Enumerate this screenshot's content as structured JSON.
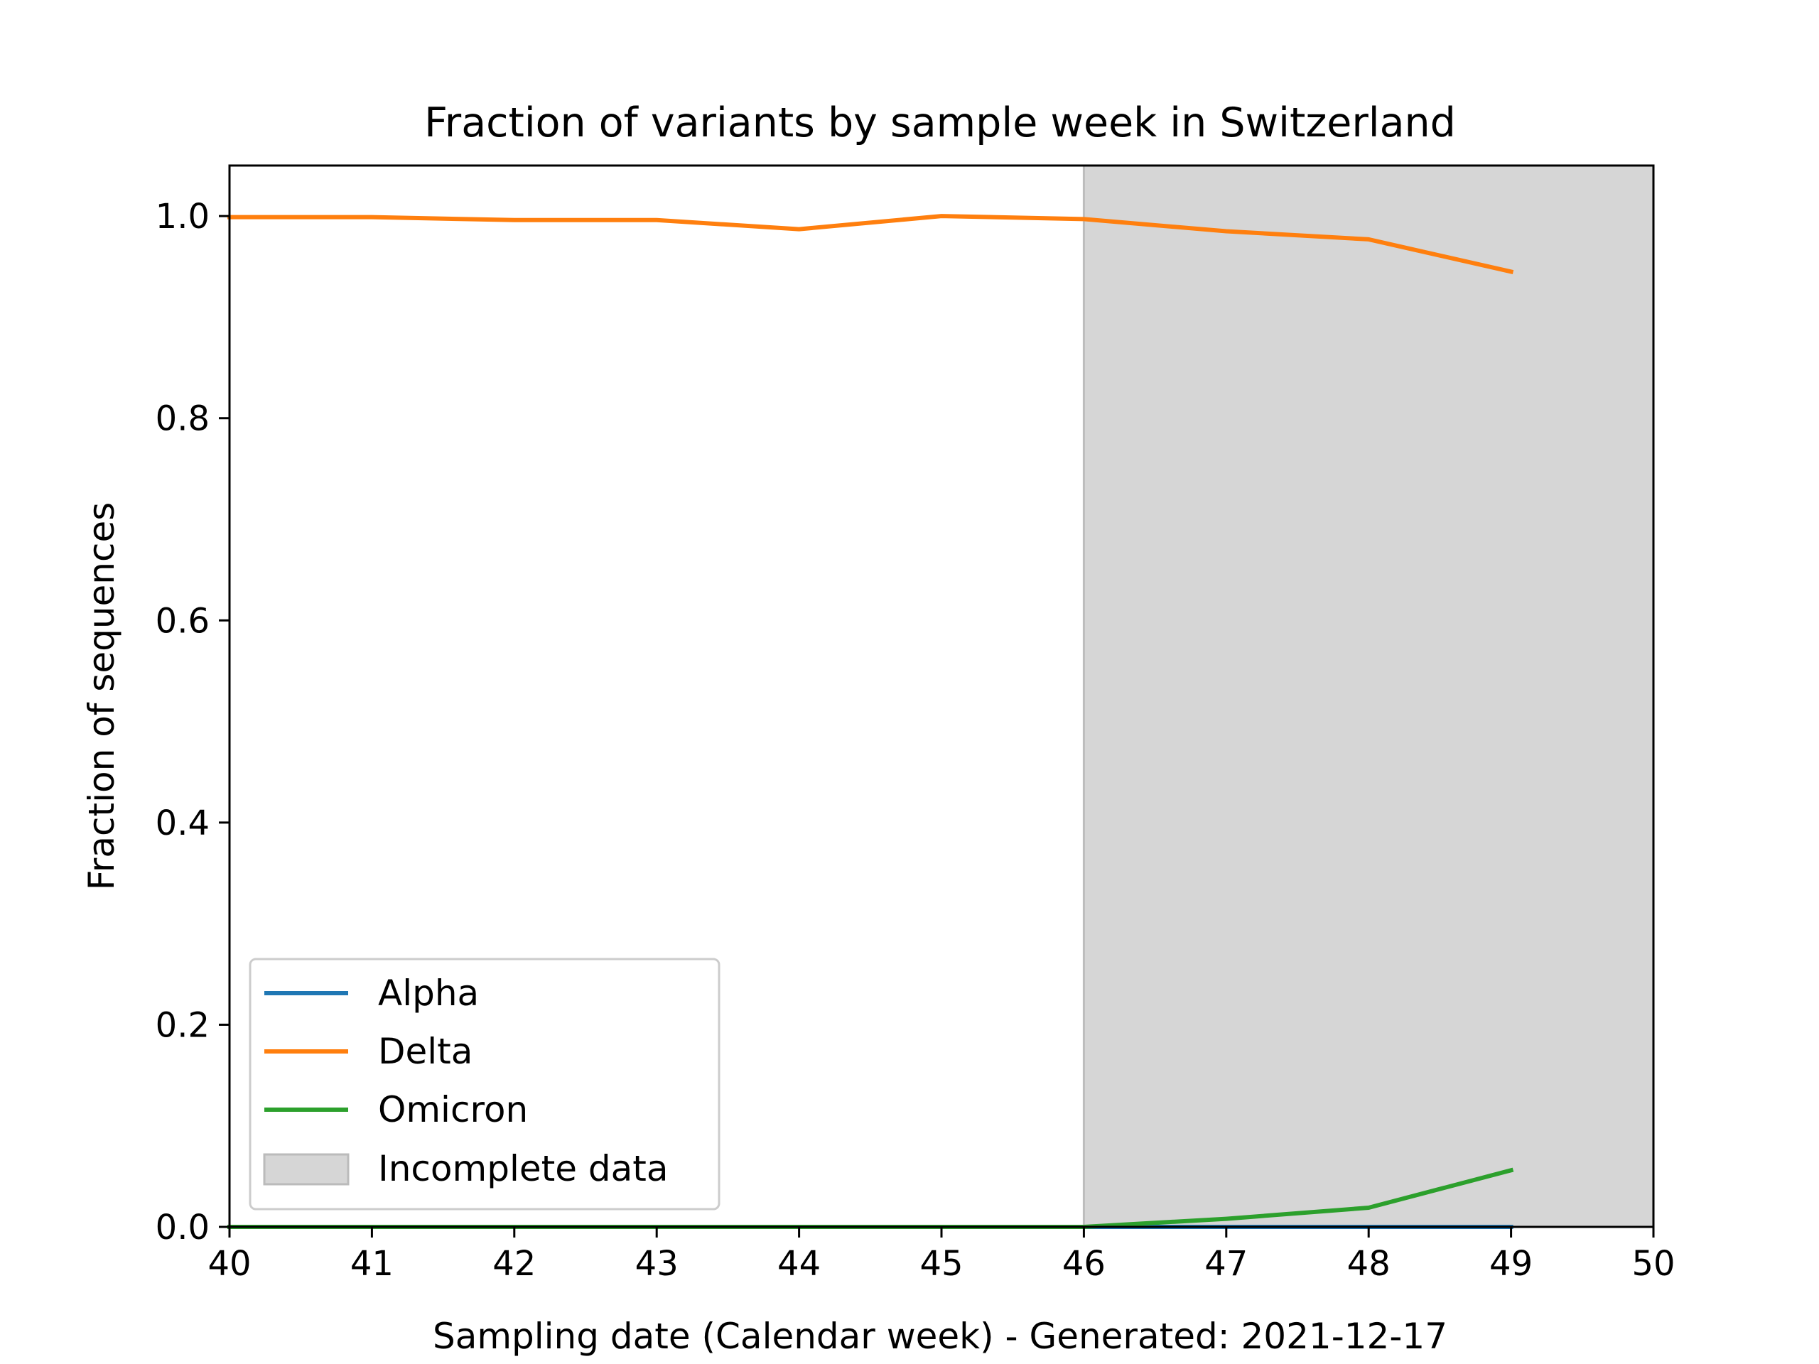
{
  "chart_data": {
    "type": "line",
    "title": "Fraction of variants by sample week in Switzerland",
    "xlabel": "Sampling date (Calendar week) - Generated: 2021-12-17",
    "ylabel": "Fraction of sequences",
    "xlim": [
      40,
      50
    ],
    "ylim": [
      0,
      1.05
    ],
    "xticks": [
      40,
      41,
      42,
      43,
      44,
      45,
      46,
      47,
      48,
      49,
      50
    ],
    "yticks": [
      0.0,
      0.2,
      0.4,
      0.6,
      0.8,
      1.0
    ],
    "ytick_labels": [
      "0.0",
      "0.2",
      "0.4",
      "0.6",
      "0.8",
      "1.0"
    ],
    "grid": false,
    "legend_position": "lower-left",
    "x": [
      40,
      41,
      42,
      43,
      44,
      45,
      46,
      47,
      48,
      49
    ],
    "series": [
      {
        "name": "Alpha",
        "color": "#1f77b4",
        "values": [
          0,
          0,
          0,
          0,
          0,
          0,
          0,
          0,
          0,
          0
        ]
      },
      {
        "name": "Delta",
        "color": "#ff7f0e",
        "values": [
          0.999,
          0.999,
          0.996,
          0.996,
          0.987,
          1.0,
          0.997,
          0.985,
          0.977,
          0.945
        ]
      },
      {
        "name": "Omicron",
        "color": "#2ca02c",
        "values": [
          0,
          0,
          0,
          0,
          0,
          0,
          0,
          0.008,
          0.019,
          0.056
        ]
      }
    ],
    "shaded_region": {
      "label": "Incomplete data",
      "x_start": 46,
      "x_end": 50,
      "color": "#d6d6d6"
    }
  }
}
